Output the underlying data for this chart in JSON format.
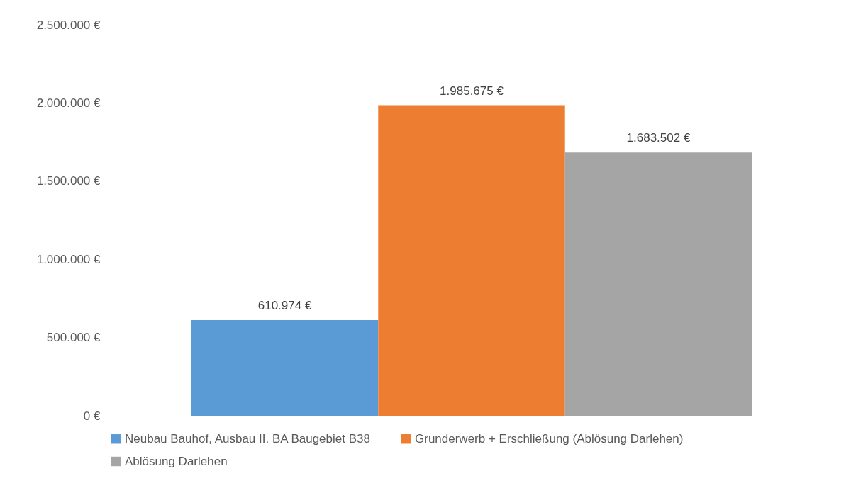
{
  "chart_data": {
    "type": "bar",
    "categories": [
      null
    ],
    "series": [
      {
        "name": "Neubau Bauhof, Ausbau II. BA Baugebiet B38",
        "color": "#5b9bd5",
        "values": [
          610974
        ],
        "value_labels": [
          "610.974 €"
        ]
      },
      {
        "name": "Grunderwerb + Erschließung (Ablösung Darlehen)",
        "color": "#ed7d31",
        "values": [
          1985675
        ],
        "value_labels": [
          "1.985.675 €"
        ]
      },
      {
        "name": "Ablösung Darlehen",
        "color": "#a5a5a5",
        "values": [
          1683502
        ],
        "value_labels": [
          "1.683.502 €"
        ]
      }
    ],
    "ylim": [
      0,
      2500000
    ],
    "yticks": [
      {
        "value": 0,
        "label": "0 €"
      },
      {
        "value": 500000,
        "label": "500.000 €"
      },
      {
        "value": 1000000,
        "label": "1.000.000 €"
      },
      {
        "value": 1500000,
        "label": "1.500.000 €"
      },
      {
        "value": 2000000,
        "label": "2.000.000 €"
      },
      {
        "value": 2500000,
        "label": "2.500.000 €"
      }
    ],
    "legend": "bottom"
  }
}
